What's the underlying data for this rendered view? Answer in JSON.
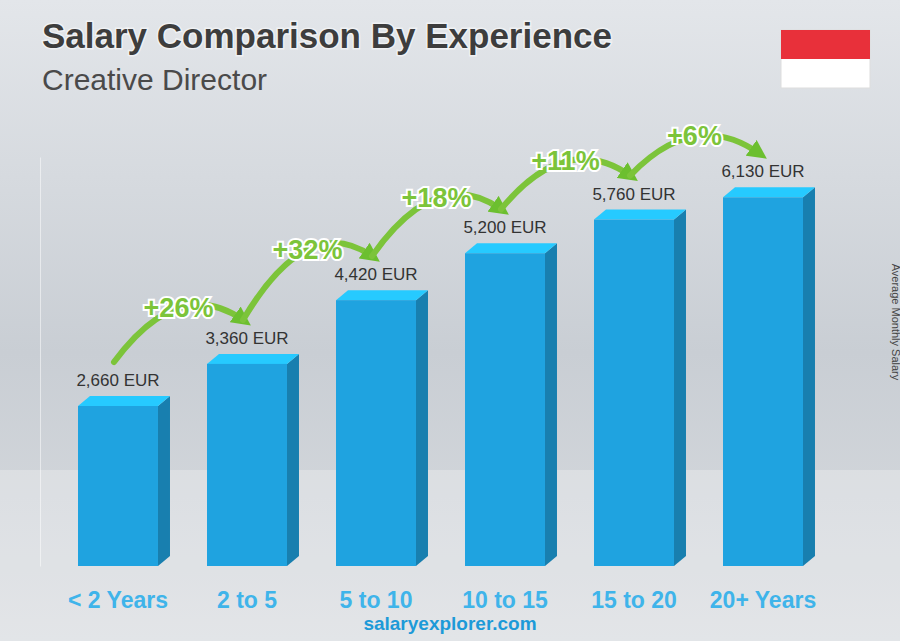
{
  "chart_data": {
    "type": "bar",
    "title": "Salary Comparison By Experience",
    "subtitle": "Creative Director",
    "ylabel": "Average Monthly Salary",
    "categories": [
      "< 2 Years",
      "2 to 5",
      "5 to 10",
      "10 to 15",
      "15 to 20",
      "20+ Years"
    ],
    "values": [
      2660,
      3360,
      4420,
      5200,
      5760,
      6130
    ],
    "value_labels": [
      "2,660 EUR",
      "3,360 EUR",
      "4,420 EUR",
      "5,200 EUR",
      "5,760 EUR",
      "6,130 EUR"
    ],
    "data_labels": true,
    "annotations": [
      "+26%",
      "+32%",
      "+18%",
      "+11%",
      "+6%"
    ],
    "footer": "salaryexplorer.com",
    "color": "#1fa3e0",
    "ylim": [
      0,
      6800
    ],
    "tick_labels": "x"
  }
}
